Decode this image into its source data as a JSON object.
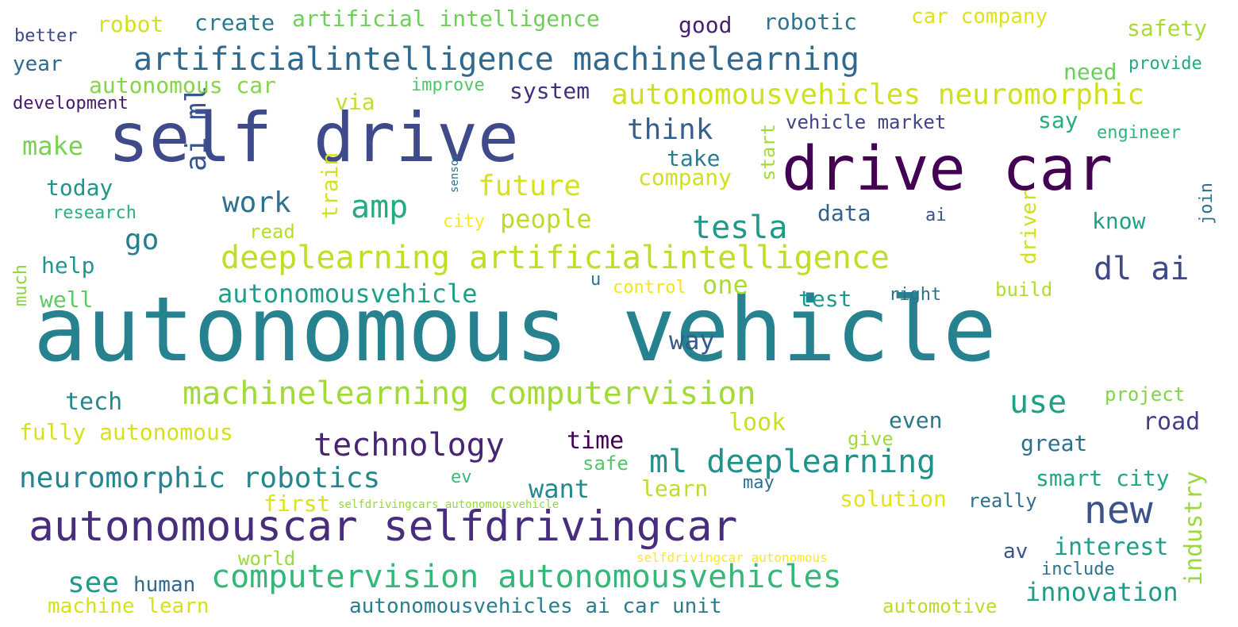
{
  "words": [
    {
      "id": "autonomous-vehicle",
      "text": "autonomous vehicle",
      "color": "#26828e"
    },
    {
      "id": "self-drive",
      "text": "self drive",
      "color": "#3e4a89"
    },
    {
      "id": "drive-car",
      "text": "drive car",
      "color": "#440154"
    },
    {
      "id": "autonomouscar-selfdrivingcar",
      "text": "autonomouscar selfdrivingcar",
      "color": "#472d7b"
    },
    {
      "id": "artificialintelligence-machinelearning",
      "text": "artificialintelligence machinelearning",
      "color": "#31688e"
    },
    {
      "id": "deeplearning-artificialintelligence",
      "text": "deeplearning artificialintelligence",
      "color": "#bddf26"
    },
    {
      "id": "machinelearning-computervision",
      "text": "machinelearning computervision",
      "color": "#a2da37"
    },
    {
      "id": "computervision-autonomousvehicles",
      "text": "computervision autonomousvehicles",
      "color": "#35b779"
    },
    {
      "id": "autonomousvehicles-neuromorphic",
      "text": "autonomousvehicles neuromorphic",
      "color": "#d0e11c"
    },
    {
      "id": "ml-deeplearning",
      "text": "ml deeplearning",
      "color": "#21918c"
    },
    {
      "id": "neuromorphic-robotics",
      "text": "neuromorphic robotics",
      "color": "#25858e"
    },
    {
      "id": "technology",
      "text": "technology",
      "color": "#482475"
    },
    {
      "id": "autonomousvehicle",
      "text": "autonomousvehicle",
      "color": "#1f9e89"
    },
    {
      "id": "tesla",
      "text": "tesla",
      "color": "#1f9a8a"
    },
    {
      "id": "new",
      "text": "new",
      "color": "#3b528b"
    },
    {
      "id": "dl-ai",
      "text": "dl ai",
      "color": "#3e4989"
    },
    {
      "id": "amp",
      "text": "amp",
      "color": "#25ab82"
    },
    {
      "id": "use",
      "text": "use",
      "color": "#1fa187"
    },
    {
      "id": "future",
      "text": "future",
      "color": "#d8e219"
    },
    {
      "id": "think",
      "text": "think",
      "color": "#355f8d"
    },
    {
      "id": "work",
      "text": "work",
      "color": "#2c728e"
    },
    {
      "id": "people",
      "text": "people",
      "color": "#bade28"
    },
    {
      "id": "make",
      "text": "make",
      "color": "#7ad151"
    },
    {
      "id": "go",
      "text": "go",
      "color": "#277f8e"
    },
    {
      "id": "one",
      "text": "one",
      "color": "#addc30"
    },
    {
      "id": "ai-ml",
      "text": "ai ml",
      "color": "#39568c"
    },
    {
      "id": "robot",
      "text": "robot",
      "color": "#d2e21b"
    },
    {
      "id": "create",
      "text": "create",
      "color": "#2a788e"
    },
    {
      "id": "artificial-intelligence",
      "text": "artificial intelligence",
      "color": "#6ece58"
    },
    {
      "id": "good",
      "text": "good",
      "color": "#481f70"
    },
    {
      "id": "robotic",
      "text": "robotic",
      "color": "#2a768e"
    },
    {
      "id": "car-company",
      "text": "car company",
      "color": "#dde318"
    },
    {
      "id": "safety",
      "text": "safety",
      "color": "#a8db34"
    },
    {
      "id": "better",
      "text": "better",
      "color": "#3f4788"
    },
    {
      "id": "year",
      "text": "year",
      "color": "#31688e"
    },
    {
      "id": "autonomous-car",
      "text": "autonomous car",
      "color": "#86d549"
    },
    {
      "id": "improve",
      "text": "improve",
      "color": "#52c569"
    },
    {
      "id": "system",
      "text": "system",
      "color": "#46307e"
    },
    {
      "id": "need",
      "text": "need",
      "color": "#6ccd5a"
    },
    {
      "id": "provide",
      "text": "provide",
      "color": "#22a884"
    },
    {
      "id": "development",
      "text": "development",
      "color": "#481769"
    },
    {
      "id": "via",
      "text": "via",
      "color": "#c2df23"
    },
    {
      "id": "say",
      "text": "say",
      "color": "#27ad81"
    },
    {
      "id": "vehicle-market",
      "text": "vehicle market",
      "color": "#414487"
    },
    {
      "id": "engineer",
      "text": "engineer",
      "color": "#2fb47c"
    },
    {
      "id": "take",
      "text": "take",
      "color": "#277f8e"
    },
    {
      "id": "company",
      "text": "company",
      "color": "#d0e11c"
    },
    {
      "id": "today",
      "text": "today",
      "color": "#1f968b"
    },
    {
      "id": "research",
      "text": "research",
      "color": "#2ab07f"
    },
    {
      "id": "data",
      "text": "data",
      "color": "#33638d"
    },
    {
      "id": "ai",
      "text": "ai",
      "color": "#3b528b"
    },
    {
      "id": "know",
      "text": "know",
      "color": "#1fa088"
    },
    {
      "id": "read",
      "text": "read",
      "color": "#b5de2b"
    },
    {
      "id": "city",
      "text": "city",
      "color": "#fde725"
    },
    {
      "id": "help",
      "text": "help",
      "color": "#1f958b"
    },
    {
      "id": "well",
      "text": "well",
      "color": "#5ec962"
    },
    {
      "id": "u",
      "text": "u",
      "color": "#2c728e"
    },
    {
      "id": "control",
      "text": "control",
      "color": "#f1e51d"
    },
    {
      "id": "right",
      "text": "right",
      "color": "#2d708e"
    },
    {
      "id": "build",
      "text": "build",
      "color": "#b0dd2f"
    },
    {
      "id": "test",
      "text": "test",
      "color": "#1f988b"
    },
    {
      "id": "way",
      "text": "way",
      "color": "#365c8d"
    },
    {
      "id": "tech",
      "text": "tech",
      "color": "#24868e"
    },
    {
      "id": "project",
      "text": "project",
      "color": "#84d44b"
    },
    {
      "id": "fully-autonomous",
      "text": "fully autonomous",
      "color": "#d5e21a"
    },
    {
      "id": "look",
      "text": "look",
      "color": "#c8e020"
    },
    {
      "id": "even",
      "text": "even",
      "color": "#2a768e"
    },
    {
      "id": "road",
      "text": "road",
      "color": "#423f85"
    },
    {
      "id": "time",
      "text": "time",
      "color": "#440154"
    },
    {
      "id": "give",
      "text": "give",
      "color": "#a0da39"
    },
    {
      "id": "great",
      "text": "great",
      "color": "#2d708e"
    },
    {
      "id": "want",
      "text": "want",
      "color": "#23898e"
    },
    {
      "id": "safe",
      "text": "safe",
      "color": "#54c568"
    },
    {
      "id": "ev",
      "text": "ev",
      "color": "#38b977"
    },
    {
      "id": "learn",
      "text": "learn",
      "color": "#bbdf27"
    },
    {
      "id": "may",
      "text": "may",
      "color": "#2e6f8e"
    },
    {
      "id": "smart-city",
      "text": "smart city",
      "color": "#22a785"
    },
    {
      "id": "first",
      "text": "first",
      "color": "#dde318"
    },
    {
      "id": "selfdrivingcars-autonomousvehicle",
      "text": "selfdrivingcars autonomousvehicle",
      "color": "#95d840"
    },
    {
      "id": "solution",
      "text": "solution",
      "color": "#e5e419"
    },
    {
      "id": "really",
      "text": "really",
      "color": "#2d708e"
    },
    {
      "id": "world",
      "text": "world",
      "color": "#9dd93b"
    },
    {
      "id": "selfdrivingcar-autonomous",
      "text": "selfdrivingcar autonomous",
      "color": "#fde725"
    },
    {
      "id": "av",
      "text": "av",
      "color": "#3b528b"
    },
    {
      "id": "interest",
      "text": "interest",
      "color": "#1f9e89"
    },
    {
      "id": "include",
      "text": "include",
      "color": "#2c728e"
    },
    {
      "id": "innovation",
      "text": "innovation",
      "color": "#1e9c89"
    },
    {
      "id": "see",
      "text": "see",
      "color": "#1f9a8a"
    },
    {
      "id": "human",
      "text": "human",
      "color": "#31688e"
    },
    {
      "id": "machine-learn",
      "text": "machine learn",
      "color": "#d5e21a"
    },
    {
      "id": "autonomousvehicles-ai-car-unit",
      "text": "autonomousvehicles ai car unit",
      "color": "#287d8e"
    },
    {
      "id": "automotive",
      "text": "automotive",
      "color": "#b8de29"
    },
    {
      "id": "train",
      "text": "train",
      "color": "#d2e21b"
    },
    {
      "id": "start",
      "text": "start",
      "color": "#a5db36"
    },
    {
      "id": "sensor",
      "text": "sensor",
      "color": "#2c728e"
    },
    {
      "id": "driver",
      "text": "driver",
      "color": "#d0e11c"
    },
    {
      "id": "join",
      "text": "join",
      "color": "#2c728e"
    },
    {
      "id": "much",
      "text": "much",
      "color": "#8bd646"
    },
    {
      "id": "industry",
      "text": "industry",
      "color": "#9bd93c"
    }
  ]
}
